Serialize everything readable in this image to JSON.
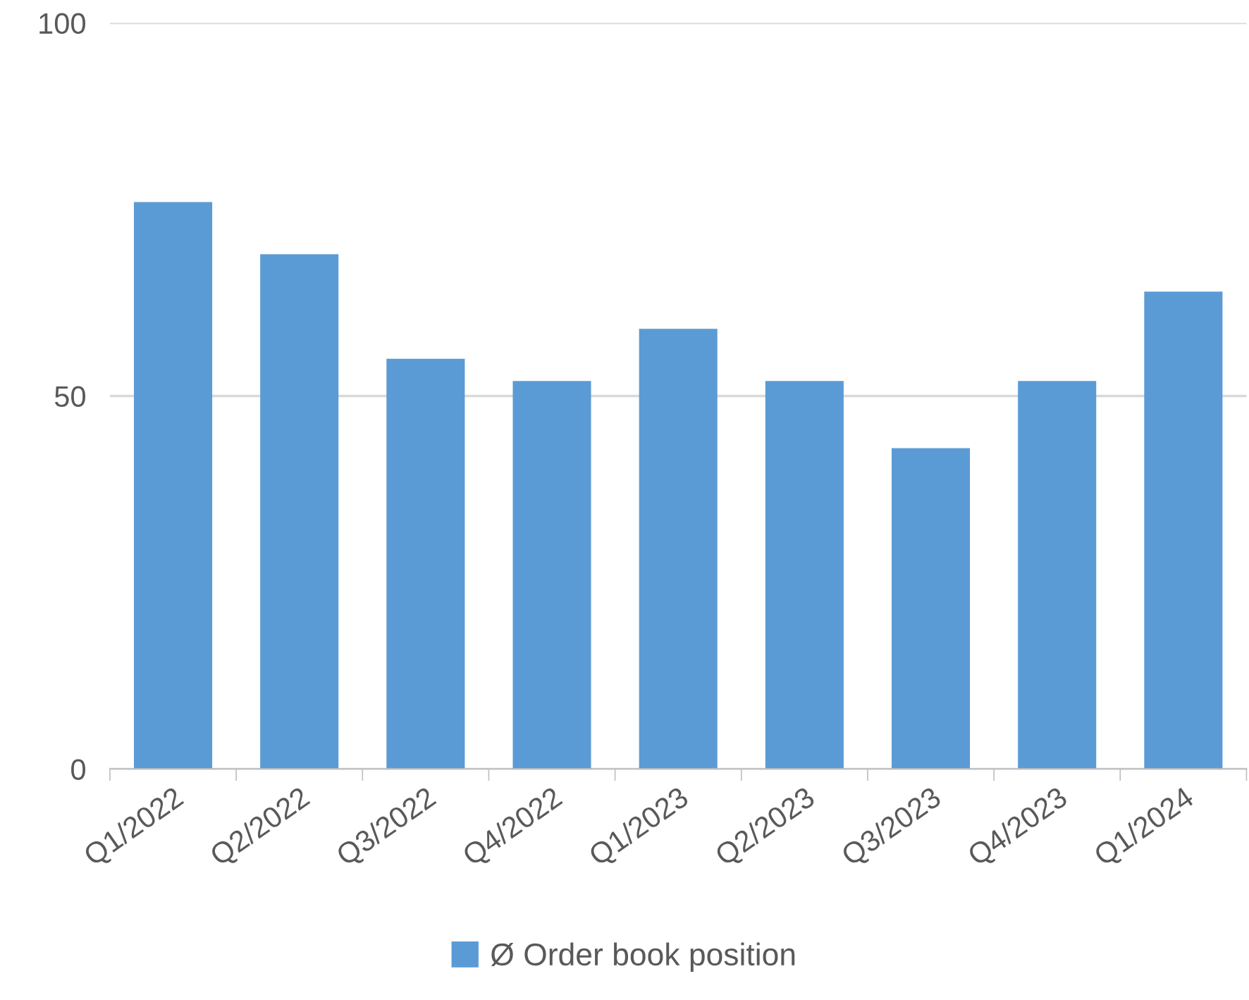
{
  "chart_data": {
    "type": "bar",
    "categories": [
      "Q1/2022",
      "Q2/2022",
      "Q3/2022",
      "Q4/2022",
      "Q1/2023",
      "Q2/2023",
      "Q3/2023",
      "Q4/2023",
      "Q1/2024"
    ],
    "series": [
      {
        "name": "Ø Order book position",
        "color": "#5b9bd5",
        "values": [
          76,
          69,
          55,
          52,
          59,
          52,
          43,
          52,
          64
        ]
      }
    ],
    "ylim": [
      0,
      100
    ],
    "yticks": [
      0,
      50,
      100
    ],
    "grid": "y",
    "legend": "bottom"
  }
}
